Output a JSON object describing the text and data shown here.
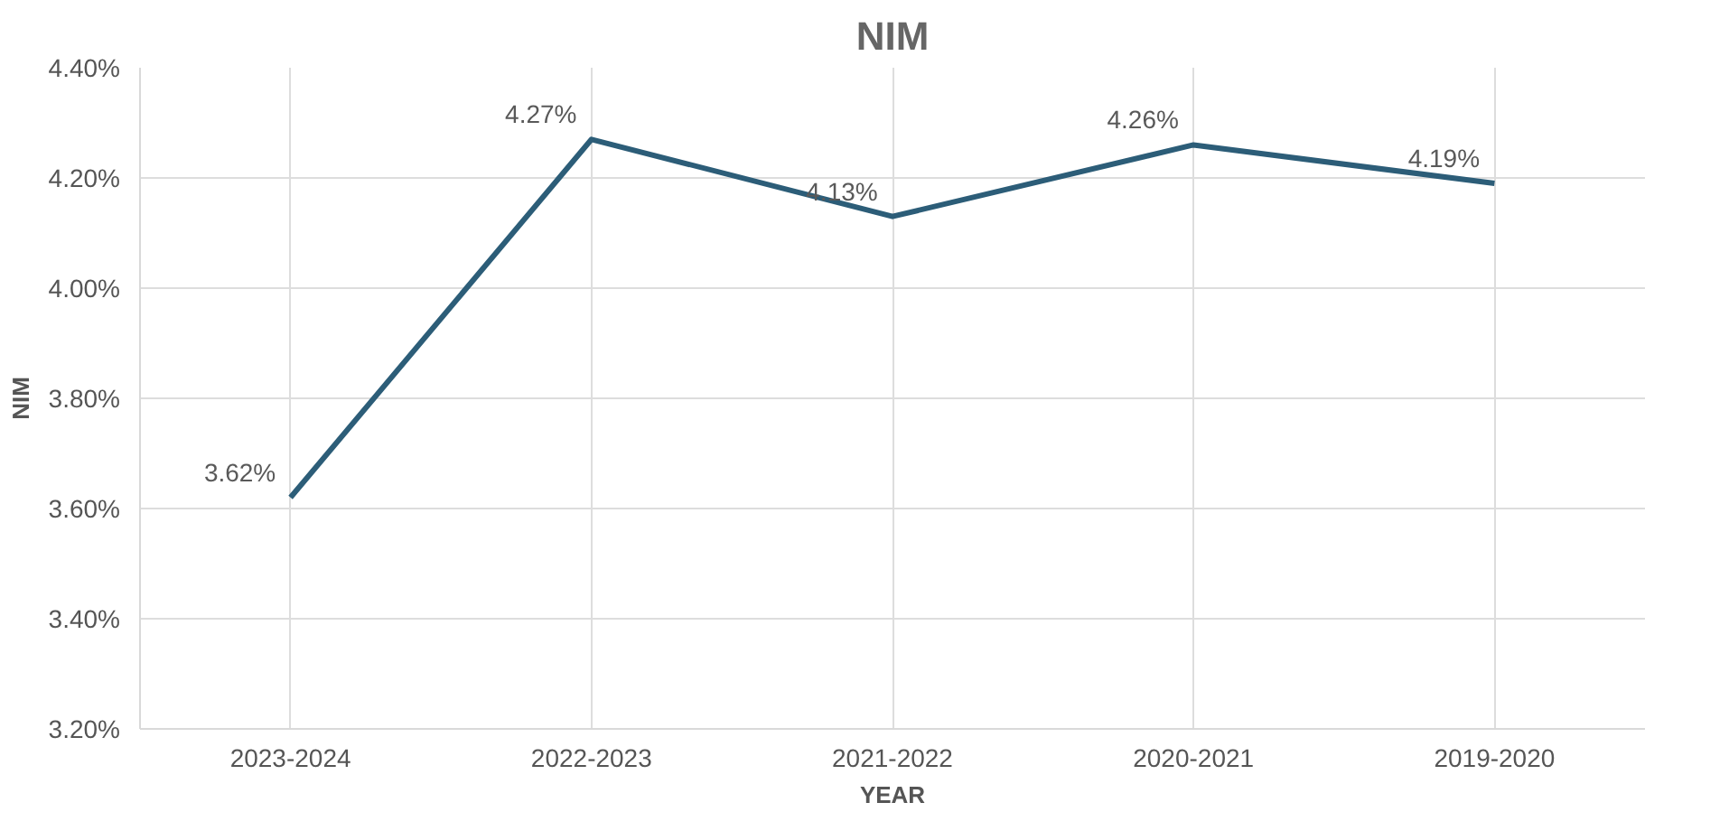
{
  "chart_data": {
    "type": "line",
    "title": "NIM",
    "xlabel": "YEAR",
    "ylabel": "NIM",
    "categories": [
      "2023-2024",
      "2022-2023",
      "2021-2022",
      "2020-2021",
      "2019-2020"
    ],
    "series": [
      {
        "color": "#2c5d78",
        "values": [
          3.62,
          4.27,
          4.13,
          4.26,
          4.19
        ],
        "value_labels": [
          "3.62%",
          "4.27%",
          "4.13%",
          "4.26%",
          "4.19%"
        ]
      }
    ],
    "ylim": [
      3.2,
      4.4
    ],
    "yticks": [
      {
        "value": 3.2,
        "label": "3.20%"
      },
      {
        "value": 3.4,
        "label": "3.40%"
      },
      {
        "value": 3.6,
        "label": "3.60%"
      },
      {
        "value": 3.8,
        "label": "3.80%"
      },
      {
        "value": 4.0,
        "label": "4.00%"
      },
      {
        "value": 4.2,
        "label": "4.20%"
      },
      {
        "value": 4.4,
        "label": "4.40%"
      }
    ],
    "grid": true,
    "marker": "none",
    "line_style": "solid"
  }
}
